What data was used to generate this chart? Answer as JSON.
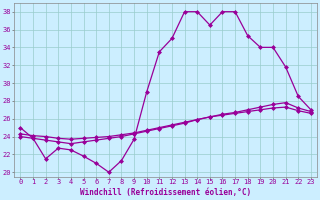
{
  "line1_x": [
    0,
    1,
    2,
    3,
    4,
    5,
    6,
    7,
    8,
    9,
    10,
    11,
    12,
    13,
    14,
    15,
    16,
    17,
    18,
    19,
    20,
    21,
    22,
    23
  ],
  "line1_y": [
    25.0,
    23.8,
    21.5,
    22.7,
    22.5,
    21.8,
    21.0,
    20.0,
    21.3,
    23.7,
    29.0,
    33.5,
    35.0,
    38.0,
    38.0,
    36.5,
    38.0,
    38.0,
    35.3,
    34.0,
    34.0,
    31.8,
    28.5,
    27.0
  ],
  "line2_x": [
    0,
    1,
    2,
    3,
    4,
    5,
    6,
    7,
    8,
    9,
    10,
    11,
    12,
    13,
    14,
    15,
    16,
    17,
    18,
    19,
    20,
    21,
    22,
    23
  ],
  "line2_y": [
    24.3,
    24.1,
    24.0,
    23.8,
    23.7,
    23.8,
    23.9,
    24.0,
    24.2,
    24.4,
    24.7,
    25.0,
    25.3,
    25.6,
    25.9,
    26.2,
    26.4,
    26.6,
    26.8,
    27.0,
    27.2,
    27.3,
    26.9,
    26.6
  ],
  "line3_x": [
    0,
    1,
    2,
    3,
    4,
    5,
    6,
    7,
    8,
    9,
    10,
    11,
    12,
    13,
    14,
    15,
    16,
    17,
    18,
    19,
    20,
    21,
    22,
    23
  ],
  "line3_y": [
    24.0,
    23.8,
    23.6,
    23.4,
    23.2,
    23.4,
    23.6,
    23.8,
    24.0,
    24.3,
    24.6,
    24.9,
    25.2,
    25.5,
    25.9,
    26.2,
    26.5,
    26.7,
    27.0,
    27.3,
    27.6,
    27.8,
    27.2,
    26.8
  ],
  "color": "#990099",
  "bg_color": "#cceeff",
  "grid_color": "#99cccc",
  "xlabel": "Windchill (Refroidissement éolien,°C)",
  "ylim": [
    19.5,
    39.0
  ],
  "xlim": [
    -0.5,
    23.5
  ],
  "yticks": [
    20,
    22,
    24,
    26,
    28,
    30,
    32,
    34,
    36,
    38
  ],
  "xticks": [
    0,
    1,
    2,
    3,
    4,
    5,
    6,
    7,
    8,
    9,
    10,
    11,
    12,
    13,
    14,
    15,
    16,
    17,
    18,
    19,
    20,
    21,
    22,
    23
  ],
  "marker": "D",
  "markersize": 2.0,
  "linewidth": 0.9,
  "tick_fontsize": 5.0,
  "xlabel_fontsize": 5.5
}
